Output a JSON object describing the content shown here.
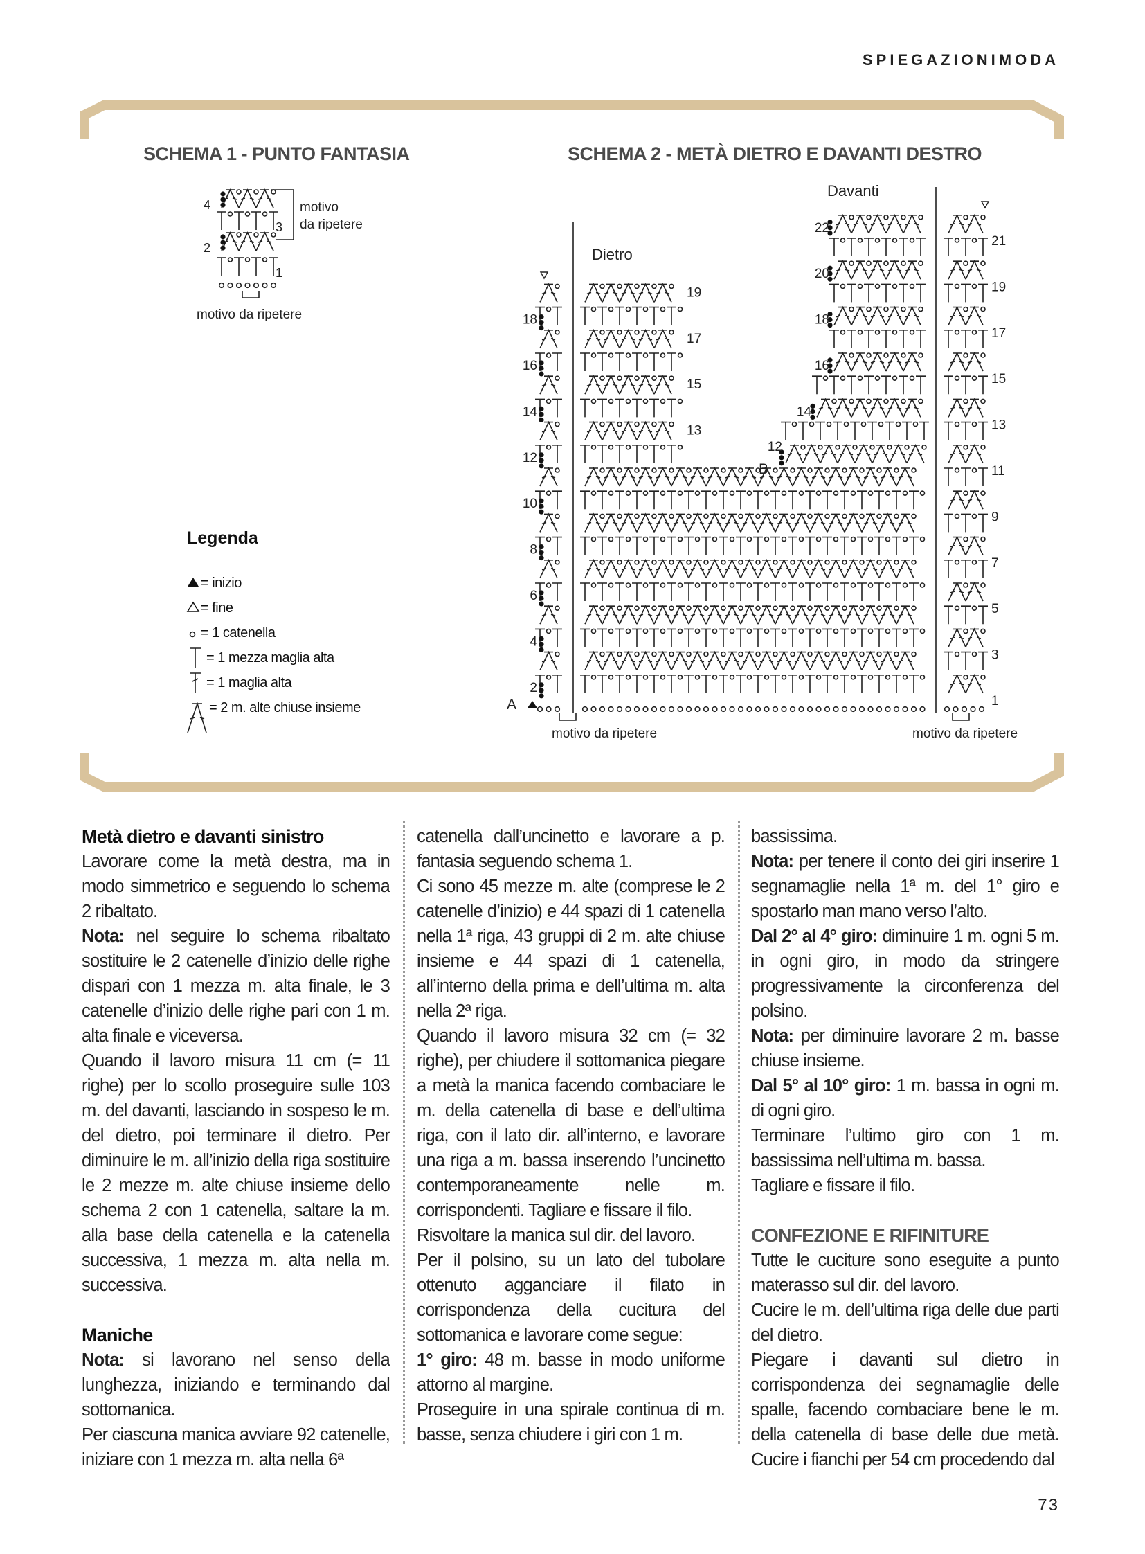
{
  "header": {
    "section": "SPIEGAZIONIMODA"
  },
  "frame_color": "#d9c39c",
  "schema1": {
    "title": "SCHEMA 1 - PUNTO FANTASIA",
    "row_labels": [
      "1",
      "2",
      "3",
      "4"
    ],
    "bracket_label_1": "motivo",
    "bracket_label_2": "da ripetere",
    "repeat_label": "motivo da ripetere"
  },
  "schema2": {
    "title": "SCHEMA 2 - METÀ DIETRO E DAVANTI DESTRO",
    "dietro_label": "Dietro",
    "davanti_label": "Davanti",
    "left_strip_labels": [
      "2",
      "4",
      "6",
      "8",
      "10",
      "12",
      "14",
      "16",
      "18"
    ],
    "right_strip_labels": [
      "1",
      "3",
      "5",
      "7",
      "9",
      "11",
      "13",
      "15",
      "17",
      "19",
      "21"
    ],
    "back_labels": [
      "13",
      "15",
      "17",
      "19"
    ],
    "front_labels": [
      "12",
      "14",
      "16",
      "18",
      "20",
      "22"
    ],
    "start_marker": "A",
    "neck_marker": "B",
    "repeat_label_left": "motivo da ripetere",
    "repeat_label_right": "motivo da ripetere"
  },
  "legend": {
    "title": "Legenda",
    "items": [
      {
        "icon": "filled-triangle-icon",
        "label": "= inizio"
      },
      {
        "icon": "outline-triangle-icon",
        "label": "= fine"
      },
      {
        "icon": "chain-circle-icon",
        "label": "= 1 catenella"
      },
      {
        "icon": "half-treble-icon",
        "label": "= 1 mezza maglia alta"
      },
      {
        "icon": "treble-icon",
        "label": "= 1 maglia alta"
      },
      {
        "icon": "treble-2tog-icon",
        "label": "= 2 m. alte chiuse insieme"
      }
    ]
  },
  "columns": [
    [
      {
        "h": "Metà dietro e davanti sinistro"
      },
      {
        "t": "Lavorare come la metà destra, ma in modo simmetrico e seguendo lo schema 2 ribaltato."
      },
      {
        "b": "Nota:",
        "t": " nel seguire lo schema ribaltato sostituire le 2 catenelle d’inizio delle righe dispari con 1 mezza m. alta finale, le 3 catenelle d’inizio delle righe pari con 1 m. alta finale e viceversa."
      },
      {
        "t": "Quando il lavoro misura 11 cm (= 11 righe) per lo scollo proseguire sulle 103 m. del davanti, lasciando in sospeso le m. del dietro, poi terminare il dietro. Per diminuire le m. all’inizio della riga sostituire le 2 mezze m. alte chiuse insieme dello schema 2 con 1 catenella, saltare la m. alla base della catenella e la catenella successiva, 1 mezza m. alta nella m. successiva."
      },
      {
        "h": "Maniche",
        "gap": true
      },
      {
        "b": "Nota:",
        "t": " si lavorano nel senso della lunghezza, iniziando e terminando dal sottomanica."
      },
      {
        "t": "Per ciascuna manica avviare 92 catenelle, iniziare con 1 mezza m. alta nella 6ª"
      }
    ],
    [
      {
        "t": "catenella dall’uncinetto e lavorare a p. fantasia seguendo schema 1."
      },
      {
        "t": "Ci sono 45 mezze m. alte (comprese le 2 catenelle d’inizio) e 44 spazi di 1 catenella nella 1ª riga, 43 gruppi di 2 m. alte chiuse insieme e 44 spazi di 1 catenella, all’interno della prima e dell’ultima m. alta nella 2ª riga."
      },
      {
        "t": "Quando il lavoro misura 32 cm (= 32 righe), per chiudere il sottomanica piegare a metà la manica facendo combaciare le m. della catenella di base e dell’ultima riga, con il lato dir. all’interno, e lavorare una riga a m. bassa inserendo l’uncinetto contemporaneamente nelle m. corrispondenti. Tagliare e fissare il filo."
      },
      {
        "t": "Risvoltare la manica sul dir. del lavoro."
      },
      {
        "t": "Per il polsino, su un lato del tubolare ottenuto agganciare il filato in corrispondenza della cucitura del sottomanica e lavorare come segue:"
      },
      {
        "b": "1° giro:",
        "t": " 48 m. basse in modo uniforme attorno al margine."
      },
      {
        "t": "Proseguire in una spirale continua di m. basse, senza chiudere i giri con 1 m."
      }
    ],
    [
      {
        "t": "bassissima."
      },
      {
        "b": "Nota:",
        "t": " per tenere il conto dei giri inserire 1 segnamaglie nella 1ª m. del 1° giro e spostarlo man mano verso l’alto."
      },
      {
        "b": "Dal 2° al 4° giro:",
        "t": " diminuire 1 m. ogni 5 m. in ogni giro, in modo da stringere progressivamente la circonferenza del polsino."
      },
      {
        "b": "Nota:",
        "t": " per diminuire lavorare 2 m. basse chiuse insieme."
      },
      {
        "b": "Dal 5° al 10° giro:",
        "t": " 1 m. bassa in ogni m. di ogni giro."
      },
      {
        "t": "Terminare l’ultimo giro con 1 m. bassissima nell’ultima m. bassa."
      },
      {
        "t": "Tagliare e fissare il filo."
      },
      {
        "h": "CONFEZIONE E RIFINITURE",
        "gray": true
      },
      {
        "t": "Tutte le cuciture sono eseguite a punto materasso sul dir. del lavoro."
      },
      {
        "t": "Cucire le m. dell’ultima riga delle due parti del dietro."
      },
      {
        "t": "Piegare i davanti sul dietro in corrispondenza dei segnamaglie delle spalle, facendo combaciare bene le m. della catenella di base delle due metà. Cucire i fianchi per 54 cm procedendo dal"
      }
    ]
  ],
  "page_number": "73"
}
